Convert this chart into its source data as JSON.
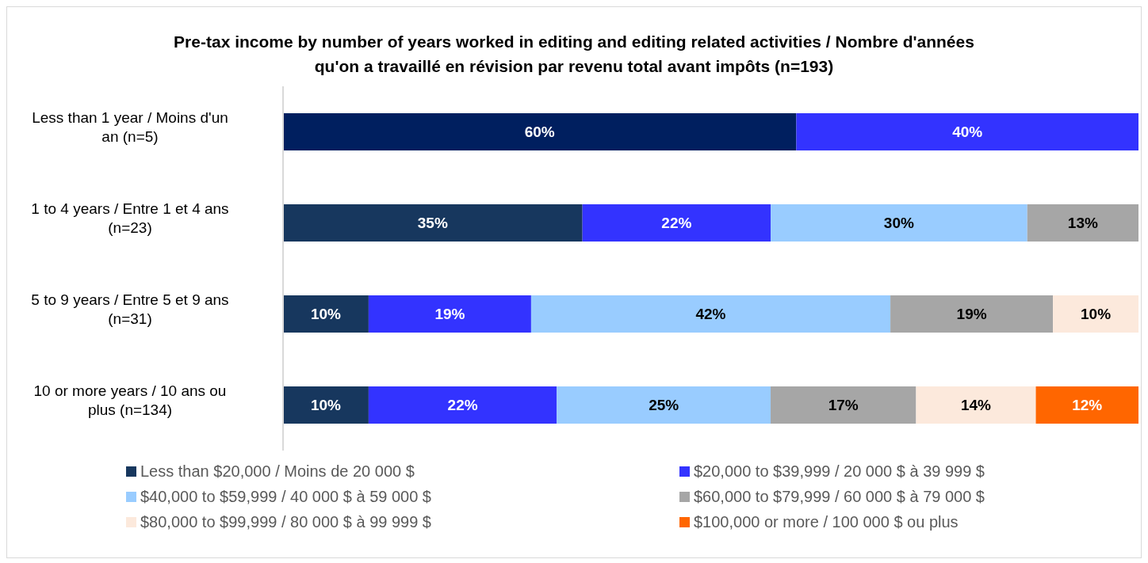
{
  "chart_data": {
    "type": "bar",
    "orientation": "horizontal",
    "stacked": true,
    "title": "Pre-tax income by number of years  worked in editing and editing related activities / Nombre d'années qu'on a travaillé en révision par revenu total avant impôts (n=193)",
    "categories": [
      "Less than 1 year / Moins d'un an (n=5)",
      "1 to 4 years / Entre 1 et 4 ans (n=23)",
      "5 to 9 years / Entre 5 et 9 ans (n=31)",
      "10 or more years / 10 ans ou plus (n=134)"
    ],
    "series": [
      {
        "name": "Less than $20,000 / Moins de 20 000 $",
        "color": "#17375e",
        "colors": [
          "#001f5f",
          "#17375e",
          "#17375e",
          "#17375e"
        ],
        "values": [
          60,
          35,
          10,
          10
        ],
        "value_labels": [
          "60%",
          "35%",
          "10%",
          "10%"
        ]
      },
      {
        "name": "$20,000 to $39,999 /  20 000 $ à 39 999 $",
        "color": "#3333ff",
        "values": [
          40,
          22,
          19,
          22
        ],
        "value_labels": [
          "40%",
          "22%",
          "19%",
          "22%"
        ]
      },
      {
        "name": "$40,000 to $59,999 / 40 000 $ à 59 000 $",
        "color": "#99ccff",
        "values": [
          null,
          30,
          42,
          25
        ],
        "value_labels": [
          null,
          "30%",
          "42%",
          "25%"
        ]
      },
      {
        "name": "$60,000 to $79,999 / 60 000 $ à 79 000 $",
        "color": "#a6a6a6",
        "values": [
          null,
          13,
          19,
          17
        ],
        "value_labels": [
          null,
          "13%",
          "19%",
          "17%"
        ]
      },
      {
        "name": "$80,000 to $99,999 / 80 000 $ à 99 999 $",
        "color": "#fce9dc",
        "values": [
          null,
          null,
          10,
          14
        ],
        "value_labels": [
          null,
          null,
          "10%",
          "14%"
        ]
      },
      {
        "name": "$100,000 or more / 100 000 $ ou plus",
        "color": "#ff6600",
        "values": [
          null,
          null,
          null,
          12
        ],
        "value_labels": [
          null,
          null,
          null,
          "12%"
        ]
      }
    ],
    "legend": "bottom",
    "grid": false
  }
}
